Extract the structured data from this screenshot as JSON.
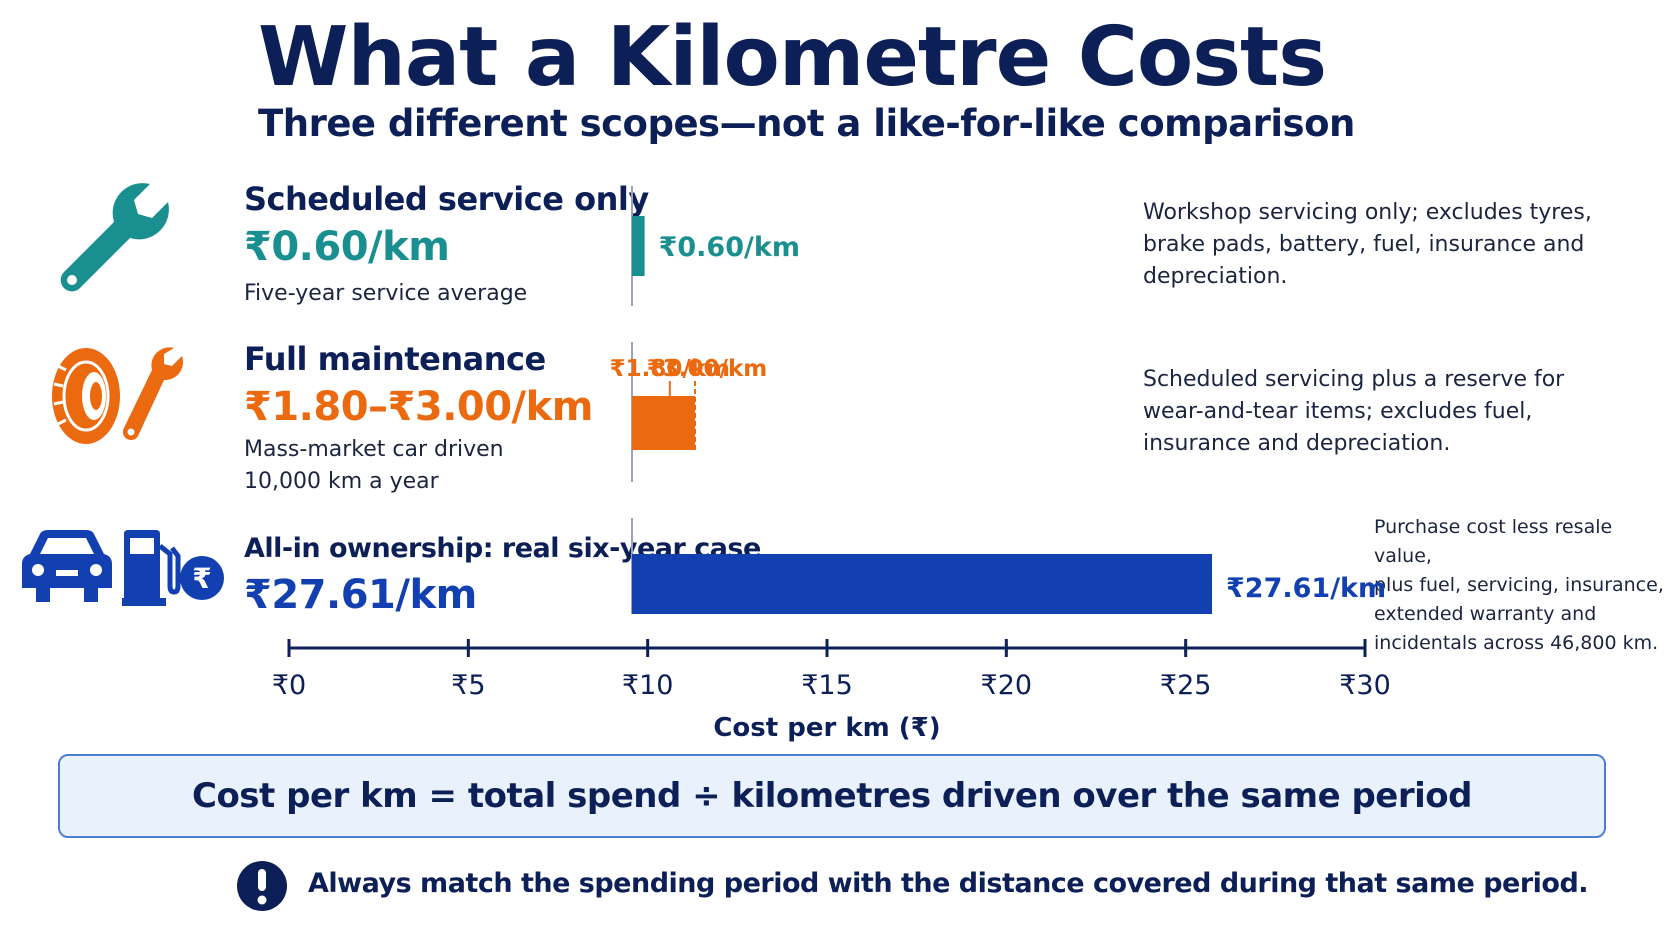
{
  "header": {
    "title": "What a Kilometre Costs",
    "subtitle": "Three different scopes—not a like-for-like comparison"
  },
  "rows": [
    {
      "title": "Scheduled service only",
      "value": "₹0.60/km",
      "subtitle_lines": [
        "Five-year service average"
      ],
      "note_lines": [
        "Workshop servicing only; excludes tyres,",
        "brake pads, battery, fuel, insurance and",
        "depreciation."
      ],
      "icon": "wrench-icon",
      "color": "#1a8f8f"
    },
    {
      "title": "Full maintenance",
      "value": "₹1.80–₹3.00/km",
      "subtitle_lines": [
        "Mass-market car driven",
        "10,000 km a year"
      ],
      "note_lines": [
        "Scheduled servicing plus a reserve for",
        "wear-and-tear items; excludes fuel,",
        "insurance and depreciation."
      ],
      "icon": "tyre-wrench-icon",
      "color": "#eb6a10"
    },
    {
      "title": "All-in ownership: real six-year case",
      "value": "₹27.61/km",
      "subtitle_lines": [],
      "note_lines": [
        "Purchase cost less resale value,",
        "plus fuel, servicing, insurance,",
        "extended warranty and",
        "incidentals across 46,800 km."
      ],
      "icon": "car-fuel-rupee-icon",
      "color": "#1240b0"
    }
  ],
  "chart_data": {
    "type": "bar",
    "orientation": "horizontal",
    "categories": [
      "Scheduled service only",
      "Full maintenance",
      "All-in ownership: real six-year case"
    ],
    "series": [
      {
        "values": [
          0.6,
          3.0,
          27.61
        ],
        "range_low": [
          null,
          1.8,
          null
        ],
        "data_labels": [
          "₹0.60/km",
          "₹3.00/km",
          "₹27.61/km"
        ],
        "colors": [
          "#1a8f8f",
          "#eb6a10",
          "#1240b0"
        ]
      }
    ],
    "range_marker_labels": [
      "₹1.80/km",
      "₹3.00/km"
    ],
    "xlim": [
      0,
      30
    ],
    "xticks": [
      0,
      5,
      10,
      15,
      20,
      25,
      30
    ],
    "xtick_labels": [
      "₹0",
      "₹5",
      "₹10",
      "₹15",
      "₹20",
      "₹25",
      "₹30"
    ],
    "xlabel": "Cost per km (₹)",
    "title": "What a Kilometre Costs",
    "subtitle": "Three different scopes—not a like-for-like comparison"
  },
  "footer": {
    "formula": "Cost per km = total spend ÷ kilometres driven over the same period",
    "tip": "Always match the spending period with the distance covered during that same period.",
    "tip_icon": "exclamation-icon"
  }
}
